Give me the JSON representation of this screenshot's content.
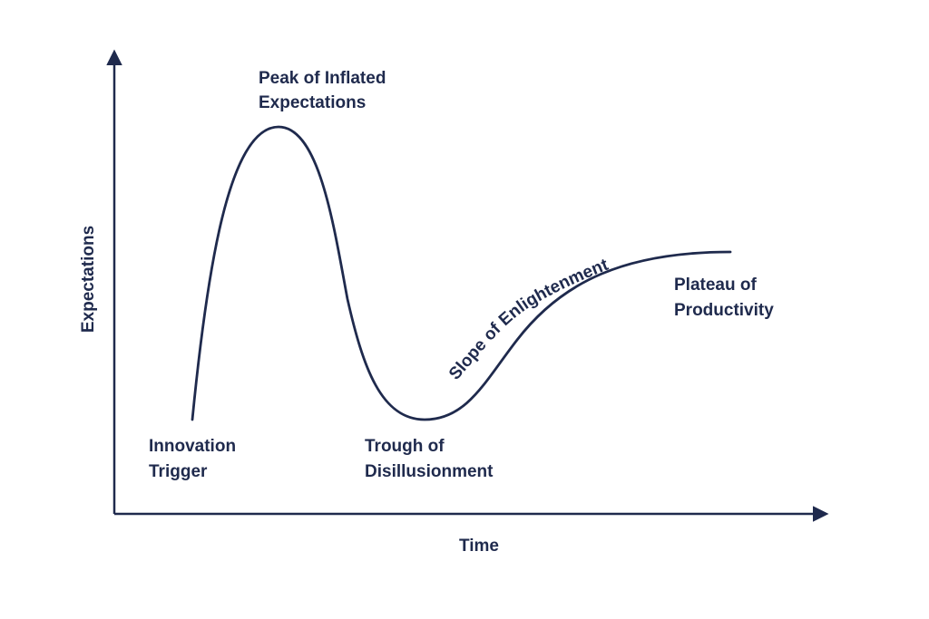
{
  "chart_data": {
    "type": "line",
    "title": "",
    "xlabel": "Time",
    "ylabel": "Expectations",
    "color": "#1f2a4d",
    "phases": [
      {
        "id": "innovation_trigger",
        "lines": [
          "Innovation",
          "Trigger"
        ]
      },
      {
        "id": "peak",
        "lines": [
          "Peak of Inflated",
          "Expectations"
        ]
      },
      {
        "id": "trough",
        "lines": [
          "Trough of",
          "Disillusionment"
        ]
      },
      {
        "id": "slope",
        "lines": [
          "Slope of Enlightenment"
        ]
      },
      {
        "id": "plateau",
        "lines": [
          "Plateau of",
          "Productivity"
        ]
      }
    ]
  }
}
